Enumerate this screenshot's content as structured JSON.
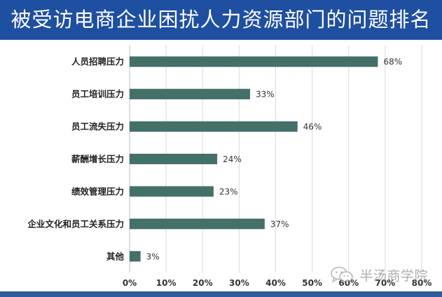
{
  "header": {
    "title": "被受访电商企业困扰人力资源部门的问题排名"
  },
  "watermark": {
    "text": "半汤商学院",
    "icon": "wechat-logo-icon"
  },
  "colors": {
    "title_bg": "#1f4fa0",
    "bar": "#44706a",
    "bottom_rule": "#2f5b99"
  },
  "chart_data": {
    "type": "bar",
    "orientation": "horizontal",
    "title": "被受访电商企业困扰人力资源部门的问题排名",
    "categories": [
      "人员招聘压力",
      "员工培训压力",
      "员工流失压力",
      "薪酬增长压力",
      "绩效管理压力",
      "企业文化和员工关系压力",
      "其他"
    ],
    "values": [
      68,
      33,
      46,
      24,
      23,
      37,
      3
    ],
    "value_labels": [
      "68%",
      "33%",
      "46%",
      "24%",
      "23%",
      "37%",
      "3%"
    ],
    "xlim": [
      0,
      80
    ],
    "x_ticks": [
      0,
      10,
      20,
      30,
      40,
      50,
      60,
      70,
      80
    ],
    "x_tick_labels": [
      "0%",
      "10%",
      "20%",
      "30%",
      "40%",
      "50%",
      "60%",
      "70%",
      "80%"
    ],
    "xlabel": "",
    "ylabel": "",
    "grid": "vertical",
    "legend": "none"
  }
}
